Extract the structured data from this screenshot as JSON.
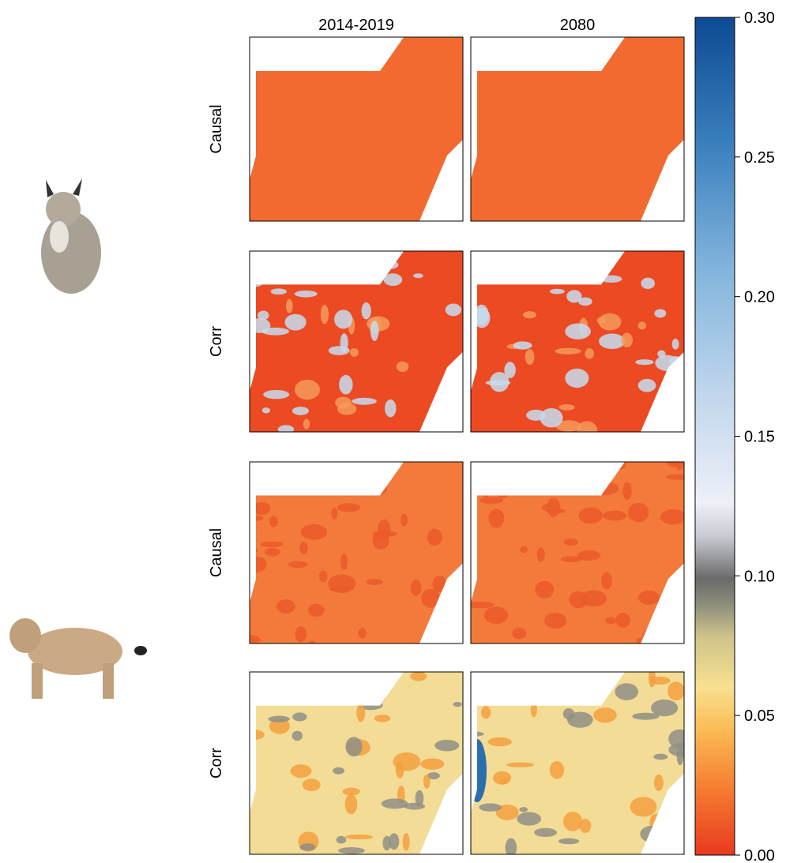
{
  "columns": [
    "2014-2019",
    "2080"
  ],
  "rows": [
    "Causal",
    "Corr",
    "Causal",
    "Corr"
  ],
  "colorbar": {
    "lim": [
      0,
      0.3
    ],
    "ticks": [
      {
        "value": 0,
        "label": "0.00"
      },
      {
        "value": 0.05,
        "label": "0.05"
      },
      {
        "value": 0.1,
        "label": "0.10"
      },
      {
        "value": 0.15,
        "label": "0.15"
      },
      {
        "value": 0.2,
        "label": "0.20"
      },
      {
        "value": 0.25,
        "label": "0.25"
      },
      {
        "value": 0.3,
        "label": "0.30"
      }
    ]
  }
}
